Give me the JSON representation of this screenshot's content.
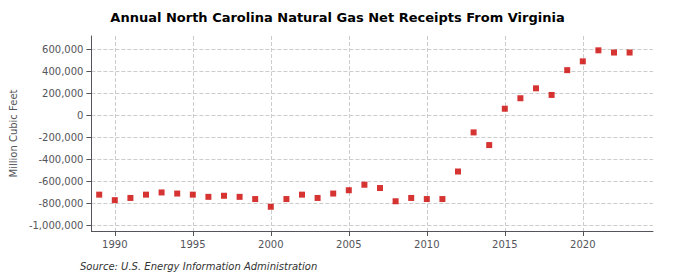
{
  "chart_data": {
    "type": "scatter",
    "title": "Annual North Carolina Natural Gas Net Receipts From Virginia",
    "ylabel": "Million Cubic Feet",
    "annotations": [
      "Source: U.S. Energy Information Administration"
    ],
    "color": "#cc0000",
    "marker": "square",
    "grid": true,
    "xlim": [
      1988.5,
      2024.5
    ],
    "ylim": [
      -1050000,
      720000
    ],
    "xticks": [
      1990,
      1995,
      2000,
      2005,
      2010,
      2015,
      2020
    ],
    "yticks": [
      {
        "value": -1000000,
        "label": "-1,000,000"
      },
      {
        "value": -800000,
        "label": "-800,000"
      },
      {
        "value": -600000,
        "label": "-600,000"
      },
      {
        "value": -400000,
        "label": "-400,000"
      },
      {
        "value": -200000,
        "label": "-200,000"
      },
      0,
      {
        "value": 200000,
        "label": "200,000"
      },
      {
        "value": 400000,
        "label": "400,000"
      },
      {
        "value": 600000,
        "label": "600,000"
      }
    ],
    "x": [
      1989,
      1990,
      1991,
      1992,
      1993,
      1994,
      1995,
      1996,
      1997,
      1998,
      1999,
      2000,
      2001,
      2002,
      2003,
      2004,
      2005,
      2006,
      2007,
      2008,
      2009,
      2010,
      2011,
      2012,
      2013,
      2014,
      2015,
      2016,
      2017,
      2018,
      2019,
      2020,
      2021,
      2022,
      2023
    ],
    "values": [
      -720000,
      -770000,
      -750000,
      -720000,
      -700000,
      -710000,
      -720000,
      -740000,
      -730000,
      -740000,
      -760000,
      -830000,
      -760000,
      -720000,
      -750000,
      -710000,
      -680000,
      -630000,
      -660000,
      -780000,
      -750000,
      -760000,
      -760000,
      -510000,
      -155000,
      -270000,
      60000,
      155000,
      245000,
      185000,
      410000,
      490000,
      590000,
      570000,
      570000
    ]
  }
}
